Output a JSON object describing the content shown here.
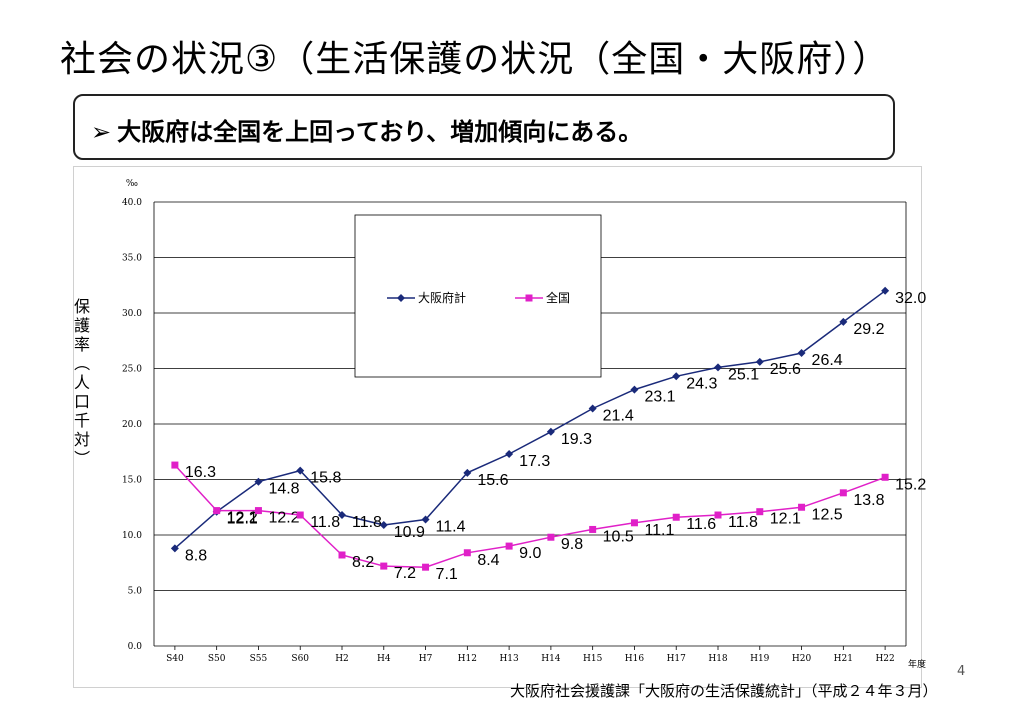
{
  "slide": {
    "title": "社会の状況③（生活保護の状況（全国・大阪府））",
    "callout_bullet": "➢",
    "callout": "大阪府は全国を上回っており、増加傾向にある。",
    "source": "大阪府社会援護課「大阪府の生活保護統計」（平成２４年３月）",
    "page_number": "4"
  },
  "colors": {
    "osaka": "#1a2a7a",
    "national": "#e020c8",
    "grid": "#000000"
  },
  "chart_data": {
    "type": "line",
    "ylabel": "保護率（人口千対）",
    "yunit": "‰",
    "xunit": "年度",
    "ylim": [
      0,
      40
    ],
    "yticks": [
      "0.0",
      "5.0",
      "10.0",
      "15.0",
      "20.0",
      "25.0",
      "30.0",
      "35.0",
      "40.0"
    ],
    "grid": true,
    "legend_position": "top-center",
    "categories": [
      "S40",
      "S50",
      "S55",
      "S60",
      "H2",
      "H4",
      "H7",
      "H12",
      "H13",
      "H14",
      "H15",
      "H16",
      "H17",
      "H18",
      "H19",
      "H20",
      "H21",
      "H22"
    ],
    "series": [
      {
        "name": "大阪府計",
        "values": [
          8.8,
          12.1,
          14.8,
          15.8,
          11.8,
          10.9,
          11.4,
          15.6,
          17.3,
          19.3,
          21.4,
          23.1,
          24.3,
          25.1,
          25.6,
          26.4,
          29.2,
          32.0
        ],
        "labels": [
          "8.8",
          "12.1",
          "14.8",
          "15.8",
          "11.8",
          "10.9",
          "11.4",
          "15.6",
          "17.3",
          "19.3",
          "21.4",
          "23.1",
          "24.3",
          "25.1",
          "25.6",
          "26.4",
          "29.2",
          "32.0"
        ]
      },
      {
        "name": "全国",
        "values": [
          16.3,
          12.2,
          12.2,
          11.8,
          8.2,
          7.2,
          7.1,
          8.4,
          9.0,
          9.8,
          10.5,
          11.1,
          11.6,
          11.8,
          12.1,
          12.5,
          13.8,
          15.2
        ],
        "labels": [
          "16.3",
          "12.2",
          "12.2",
          "11.8",
          "8.2",
          "7.2",
          "7.1",
          "8.4",
          "9.0",
          "9.8",
          "10.5",
          "11.1",
          "11.6",
          "11.8",
          "12.1",
          "12.5",
          "13.8",
          "15.2"
        ]
      }
    ]
  }
}
